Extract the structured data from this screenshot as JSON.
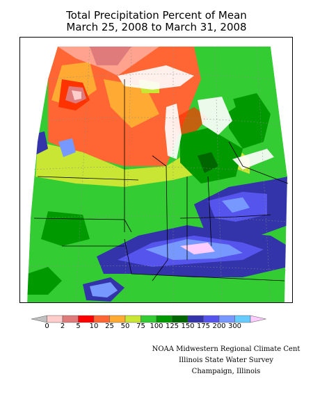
{
  "title": {
    "line1": "Total Precipitation Percent of Mean",
    "line2": "March 25, 2008 to March 31, 2008"
  },
  "legend": {
    "labels": [
      "0",
      "2",
      "5",
      "10",
      "25",
      "50",
      "75",
      "100",
      "125",
      "150",
      "175",
      "200",
      "300"
    ],
    "colors": [
      "#c0c0c0",
      "#ffcccc",
      "#e07b7b",
      "#ff0000",
      "#ff6633",
      "#ffaa33",
      "#c8e633",
      "#33cc33",
      "#009900",
      "#006600",
      "#3333aa",
      "#5555ee",
      "#7799ff",
      "#66ccff",
      "#ffccff"
    ]
  },
  "credits": {
    "line1": "NOAA Midwestern Regional Climate Cent",
    "line2": "Illinois State Water Survey",
    "line3": "Champaign, Illinois"
  }
}
